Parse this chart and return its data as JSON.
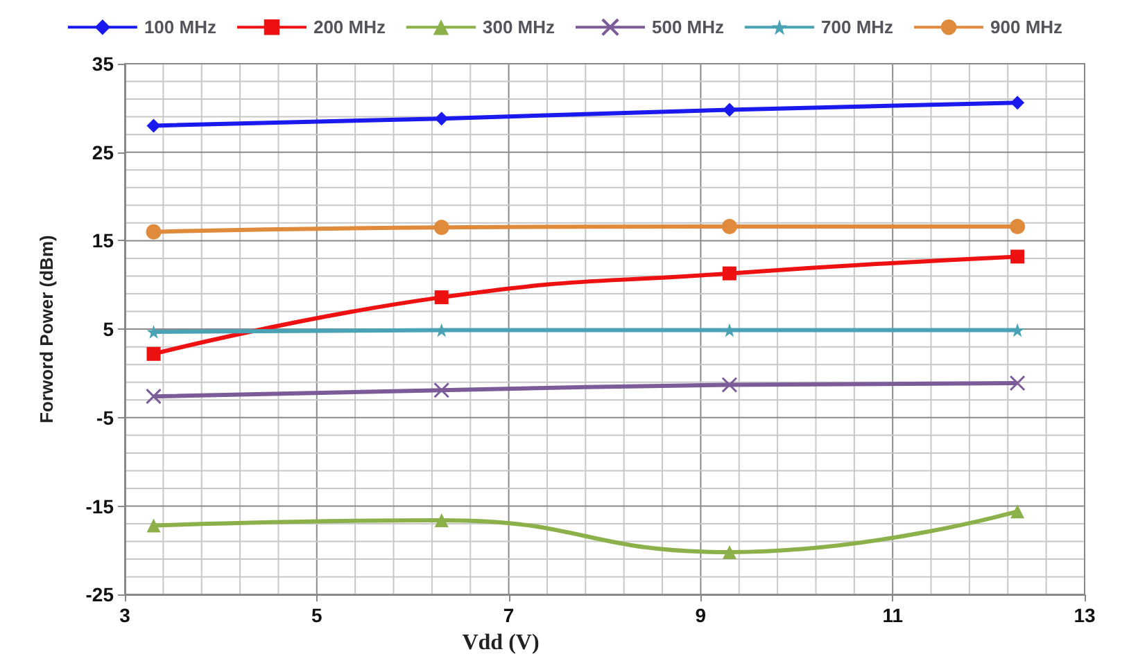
{
  "chart_data": {
    "type": "line",
    "xlabel": "Vdd (V)",
    "ylabel": "Forword Power (dBm)",
    "x": [
      3.3,
      6.3,
      9.3,
      12.3
    ],
    "series": [
      {
        "name": "100 MHz",
        "color": "#1a1aee",
        "marker": "diamond",
        "values": [
          28,
          28.8,
          29.8,
          30.6
        ]
      },
      {
        "name": "200 MHz",
        "color": "#ee1111",
        "marker": "square",
        "values": [
          2.2,
          8.6,
          11.3,
          13.2
        ]
      },
      {
        "name": "300 MHz",
        "color": "#8cb04a",
        "marker": "triangle",
        "values": [
          -17.2,
          -16.6,
          -20.2,
          -15.6
        ]
      },
      {
        "name": "500 MHz",
        "color": "#7b5c99",
        "marker": "cross",
        "values": [
          -2.6,
          -1.9,
          -1.3,
          -1.1
        ]
      },
      {
        "name": "700 MHz",
        "color": "#4aa3b5",
        "marker": "star",
        "values": [
          4.7,
          4.9,
          4.9,
          4.9
        ]
      },
      {
        "name": "900 MHz",
        "color": "#e08a3c",
        "marker": "circle",
        "values": [
          16,
          16.5,
          16.6,
          16.6
        ]
      }
    ],
    "xlim": [
      3,
      13
    ],
    "xticks": [
      3,
      5,
      7,
      9,
      11,
      13
    ],
    "ylim": [
      -25,
      35
    ],
    "yticks": [
      -25,
      -15,
      -5,
      5,
      15,
      25,
      35
    ],
    "grid": true,
    "legend": "top"
  }
}
